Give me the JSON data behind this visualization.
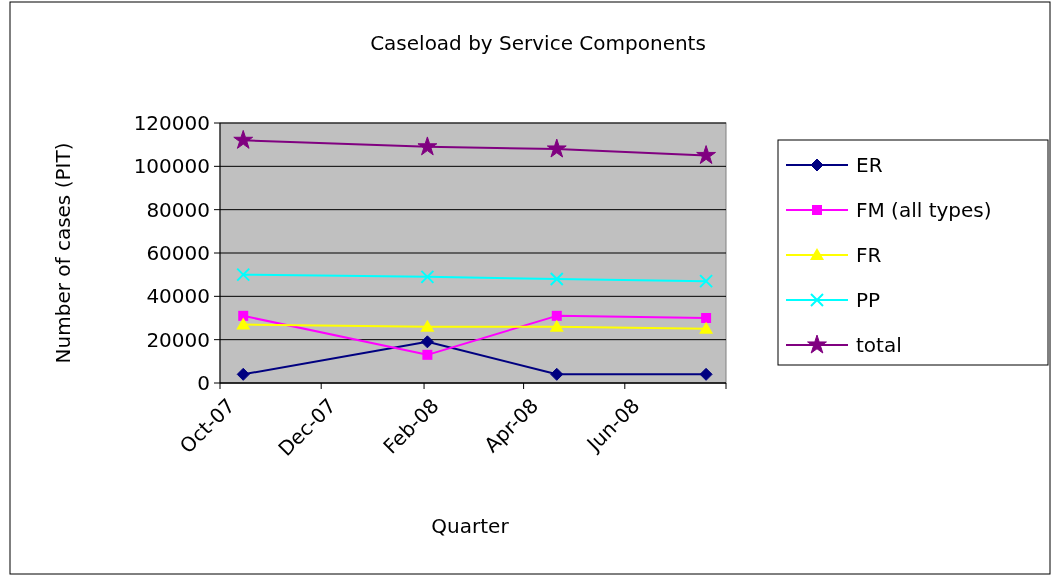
{
  "chart_data": {
    "type": "line",
    "title": "Caseload by Service Components",
    "xlabel": "Quarter",
    "ylabel": "Number of cases (PIT)",
    "x": [
      "2007-10-15",
      "2008-02-03",
      "2008-04-21",
      "2008-07-20"
    ],
    "xlim": [
      "2007-10-01",
      "2008-08-01"
    ],
    "xticks": [
      {
        "value": "2007-10-01",
        "label": "Oct-07"
      },
      {
        "value": "2007-12-01",
        "label": "Dec-07"
      },
      {
        "value": "2008-02-01",
        "label": "Feb-08"
      },
      {
        "value": "2008-04-01",
        "label": "Apr-08"
      },
      {
        "value": "2008-06-01",
        "label": "Jun-08"
      },
      {
        "value": "2008-08-01",
        "label": null
      }
    ],
    "ylim": [
      0,
      120000
    ],
    "yticks": [
      0,
      20000,
      40000,
      60000,
      80000,
      100000,
      120000
    ],
    "grid": "y",
    "legend": "right",
    "series": [
      {
        "name": "ER",
        "color": "#000080",
        "marker": "diamond",
        "values": [
          4000,
          19000,
          4000,
          4000
        ]
      },
      {
        "name": "FM (all types)",
        "color": "#ff00ff",
        "marker": "square",
        "values": [
          31000,
          13000,
          31000,
          30000
        ]
      },
      {
        "name": "FR",
        "color": "#ffff00",
        "marker": "triangle",
        "values": [
          27000,
          26000,
          26000,
          25000
        ]
      },
      {
        "name": "PP",
        "color": "#00ffff",
        "marker": "cross",
        "values": [
          50000,
          49000,
          48000,
          47000
        ]
      },
      {
        "name": "total",
        "color": "#800080",
        "marker": "star",
        "values": [
          112000,
          109000,
          108000,
          105000
        ]
      }
    ]
  }
}
